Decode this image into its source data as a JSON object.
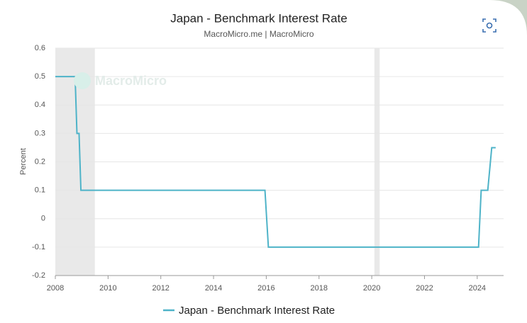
{
  "chart_data": {
    "type": "line",
    "title": "Japan - Benchmark Interest Rate",
    "subtitle": "MacroMicro.me | MacroMicro",
    "watermark": "MacroMicro",
    "y_label": "Percent",
    "x": [
      2008.0,
      2008.75,
      2008.82,
      2008.9,
      2008.97,
      2015.95,
      2016.08,
      2024.05,
      2024.15,
      2024.4,
      2024.55,
      2024.7
    ],
    "series": [
      {
        "name": "Japan - Benchmark Interest Rate",
        "color": "#4eb3c8",
        "values": [
          0.5,
          0.5,
          0.3,
          0.3,
          0.1,
          0.1,
          -0.1,
          -0.1,
          0.1,
          0.1,
          0.25,
          0.25
        ]
      }
    ],
    "shaded": [
      [
        2008.0,
        2009.5
      ],
      [
        2020.1,
        2020.3
      ]
    ],
    "shade_color": "#e9e9e9",
    "xlim": [
      2008,
      2025
    ],
    "xticks": [
      2008,
      2010,
      2012,
      2014,
      2016,
      2018,
      2020,
      2022,
      2024
    ],
    "ylim": [
      -0.2,
      0.6
    ],
    "yticks": [
      -0.2,
      -0.1,
      0,
      0.1,
      0.2,
      0.3,
      0.4,
      0.5,
      0.6
    ],
    "grid": true
  }
}
